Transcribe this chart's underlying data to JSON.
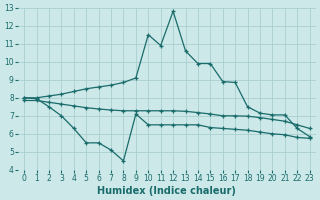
{
  "xlabel": "Humidex (Indice chaleur)",
  "bg_color": "#cce8e8",
  "line_color": "#1a6b6b",
  "grid_color": "#aacfcf",
  "xlim": [
    -0.5,
    23.5
  ],
  "ylim": [
    4,
    13
  ],
  "xticks": [
    0,
    1,
    2,
    3,
    4,
    5,
    6,
    7,
    8,
    9,
    10,
    11,
    12,
    13,
    14,
    15,
    16,
    17,
    18,
    19,
    20,
    21,
    22,
    23
  ],
  "yticks": [
    4,
    5,
    6,
    7,
    8,
    9,
    10,
    11,
    12,
    13
  ],
  "line1_x": [
    0,
    1,
    2,
    3,
    4,
    5,
    6,
    7,
    8,
    9,
    10,
    11,
    12,
    13,
    14,
    15,
    16,
    17,
    18,
    19,
    20,
    21,
    22,
    23
  ],
  "line1_y": [
    8.0,
    8.0,
    8.1,
    8.2,
    8.35,
    8.5,
    8.6,
    8.7,
    8.85,
    9.1,
    11.5,
    10.9,
    12.8,
    10.6,
    9.9,
    9.9,
    8.9,
    8.85,
    7.5,
    7.15,
    7.05,
    7.05,
    6.3,
    5.85
  ],
  "line2_x": [
    0,
    1,
    2,
    3,
    4,
    5,
    6,
    7,
    8,
    9,
    10,
    11,
    12,
    13,
    14,
    15,
    16,
    17,
    18,
    19,
    20,
    21,
    22,
    23
  ],
  "line2_y": [
    8.0,
    7.95,
    7.5,
    7.0,
    6.3,
    5.5,
    5.5,
    5.1,
    4.5,
    7.1,
    6.5,
    6.5,
    6.5,
    6.5,
    6.5,
    6.35,
    6.3,
    6.25,
    6.2,
    6.1,
    6.0,
    5.95,
    5.8,
    5.75
  ],
  "line3_x": [
    0,
    1,
    2,
    3,
    4,
    5,
    6,
    7,
    8,
    9,
    10,
    11,
    12,
    13,
    14,
    15,
    16,
    17,
    18,
    19,
    20,
    21,
    22,
    23
  ],
  "line3_y": [
    7.85,
    7.85,
    7.75,
    7.65,
    7.55,
    7.45,
    7.38,
    7.32,
    7.28,
    7.28,
    7.28,
    7.28,
    7.28,
    7.25,
    7.18,
    7.1,
    7.0,
    7.0,
    6.98,
    6.9,
    6.8,
    6.7,
    6.5,
    6.3
  ],
  "tick_fontsize": 5.5,
  "xlabel_fontsize": 7,
  "marker_size": 3,
  "linewidth": 0.9
}
